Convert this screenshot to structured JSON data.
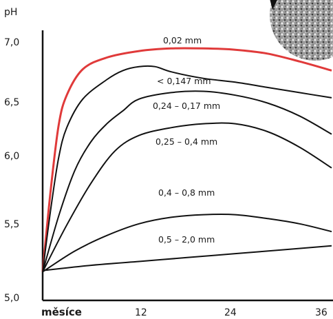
{
  "chart_data": {
    "type": "line",
    "ylabel": "pH",
    "xlabel": "měsíce",
    "ylim": [
      5.0,
      7.0
    ],
    "xlim": [
      0,
      36
    ],
    "yticks": [
      "7,0",
      "6,5",
      "6,0",
      "5,5",
      "5,0"
    ],
    "xticks": [
      "12",
      "24",
      "36"
    ],
    "colors": {
      "highlight": "#e03a3a",
      "line": "#111111",
      "photo": "#8a8a8a"
    },
    "series": [
      {
        "name": "0,02 mm",
        "color": "#e03a3a",
        "points": [
          [
            0,
            5.22
          ],
          [
            1,
            5.85
          ],
          [
            2,
            6.35
          ],
          [
            3,
            6.58
          ],
          [
            5,
            6.78
          ],
          [
            8,
            6.87
          ],
          [
            12,
            6.92
          ],
          [
            16,
            6.94
          ],
          [
            20,
            6.94
          ],
          [
            24,
            6.93
          ],
          [
            28,
            6.9
          ],
          [
            32,
            6.84
          ],
          [
            36,
            6.77
          ]
        ]
      },
      {
        "name": "< 0,147 mm",
        "color": "#111111",
        "points": [
          [
            0,
            5.22
          ],
          [
            1,
            5.7
          ],
          [
            2,
            6.1
          ],
          [
            3,
            6.33
          ],
          [
            5,
            6.55
          ],
          [
            8,
            6.7
          ],
          [
            10,
            6.77
          ],
          [
            12,
            6.8
          ],
          [
            14,
            6.8
          ],
          [
            16,
            6.76
          ],
          [
            20,
            6.71
          ],
          [
            24,
            6.68
          ],
          [
            28,
            6.64
          ],
          [
            32,
            6.6
          ],
          [
            36,
            6.56
          ]
        ]
      },
      {
        "name": "0,24 – 0,17 mm",
        "color": "#111111",
        "points": [
          [
            0,
            5.22
          ],
          [
            2,
            5.65
          ],
          [
            4,
            6.0
          ],
          [
            6,
            6.22
          ],
          [
            8,
            6.36
          ],
          [
            10,
            6.46
          ],
          [
            12,
            6.55
          ],
          [
            16,
            6.6
          ],
          [
            20,
            6.61
          ],
          [
            24,
            6.58
          ],
          [
            28,
            6.52
          ],
          [
            32,
            6.42
          ],
          [
            36,
            6.28
          ]
        ]
      },
      {
        "name": "0,25 – 0,4 mm",
        "color": "#111111",
        "points": [
          [
            0,
            5.22
          ],
          [
            3,
            5.58
          ],
          [
            6,
            5.9
          ],
          [
            9,
            6.15
          ],
          [
            12,
            6.27
          ],
          [
            16,
            6.33
          ],
          [
            20,
            6.36
          ],
          [
            24,
            6.36
          ],
          [
            28,
            6.3
          ],
          [
            32,
            6.18
          ],
          [
            36,
            6.02
          ]
        ]
      },
      {
        "name": "0,4 – 0,8 mm",
        "color": "#111111",
        "points": [
          [
            0,
            5.22
          ],
          [
            4,
            5.38
          ],
          [
            8,
            5.5
          ],
          [
            12,
            5.59
          ],
          [
            16,
            5.64
          ],
          [
            20,
            5.66
          ],
          [
            24,
            5.66
          ],
          [
            28,
            5.63
          ],
          [
            32,
            5.59
          ],
          [
            36,
            5.53
          ]
        ]
      },
      {
        "name": "0,5 – 2,0 mm",
        "color": "#111111",
        "points": [
          [
            0,
            5.23
          ],
          [
            6,
            5.27
          ],
          [
            12,
            5.3
          ],
          [
            18,
            5.33
          ],
          [
            24,
            5.36
          ],
          [
            30,
            5.39
          ],
          [
            36,
            5.42
          ]
        ]
      }
    ]
  }
}
